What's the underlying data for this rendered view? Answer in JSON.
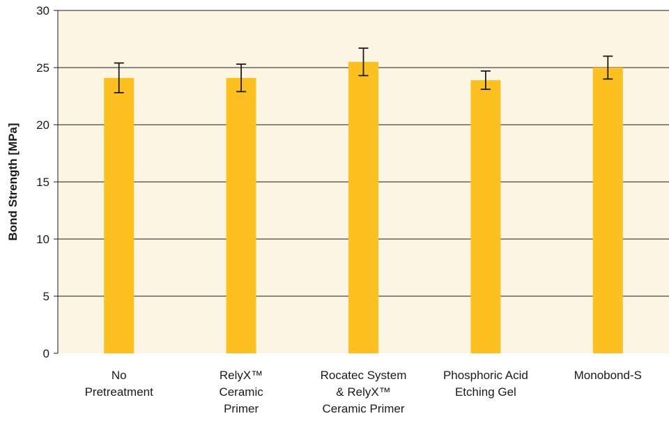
{
  "chart_data": {
    "type": "bar",
    "title": "",
    "xlabel": "",
    "ylabel": "Bond Strength [MPa]",
    "ylim": [
      0,
      30
    ],
    "yticks": [
      0,
      5,
      10,
      15,
      20,
      25,
      30
    ],
    "grid": true,
    "legend": "none",
    "categories": [
      [
        "No",
        "Pretreatment"
      ],
      [
        "RelyX™",
        "Ceramic",
        "Primer"
      ],
      [
        "Rocatec System",
        "& RelyX™",
        "Ceramic Primer"
      ],
      [
        "Phosphoric Acid",
        "Etching Gel"
      ],
      [
        "Monobond-S"
      ]
    ],
    "values": [
      24.1,
      24.1,
      25.5,
      23.9,
      25.0
    ],
    "error": [
      1.3,
      1.2,
      1.2,
      0.8,
      1.0
    ],
    "colors": {
      "bar": "#fcc020",
      "plot_background": "#fdf5e4",
      "gridline": "#1a1a1a",
      "error_bar": "#1a1a1a"
    }
  }
}
